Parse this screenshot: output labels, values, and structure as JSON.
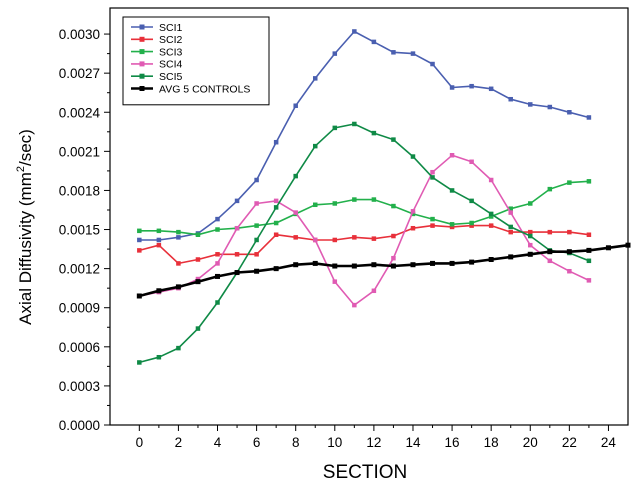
{
  "chart_data": {
    "type": "line",
    "xlabel": "SECTION",
    "ylabel_main": "Axial Diffusivity (mm",
    "ylabel_sup": "2",
    "ylabel_tail": "/sec)",
    "xlim": [
      -1.5,
      25
    ],
    "ylim": [
      0.0,
      0.0032
    ],
    "x_ticks": [
      0,
      2,
      4,
      6,
      8,
      10,
      12,
      14,
      16,
      18,
      20,
      22,
      24
    ],
    "x_tick_labels": [
      "0",
      "2",
      "4",
      "6",
      "8",
      "10",
      "12",
      "14",
      "16",
      "18",
      "20",
      "22",
      "24"
    ],
    "y_ticks": [
      0.0,
      0.0003,
      0.0006,
      0.0009,
      0.0012,
      0.0015,
      0.0018,
      0.0021,
      0.0024,
      0.0027,
      0.003
    ],
    "y_tick_labels": [
      "0.0000",
      "0.0003",
      "0.0006",
      "0.0009",
      "0.0012",
      "0.0015",
      "0.0018",
      "0.0021",
      "0.0024",
      "0.0027",
      "0.0030"
    ],
    "grid": false,
    "legend_position": "top-left",
    "series": [
      {
        "name": "SCI1",
        "color": "#4a5fb0",
        "marker": "square",
        "x": [
          0,
          1,
          2,
          3,
          4,
          5,
          6,
          7,
          8,
          9,
          10,
          11,
          12,
          13,
          14,
          15,
          16,
          17,
          18,
          19,
          20,
          21,
          22,
          23
        ],
        "y": [
          0.00142,
          0.00142,
          0.00144,
          0.00147,
          0.00158,
          0.00172,
          0.00188,
          0.00217,
          0.00245,
          0.00266,
          0.00285,
          0.00302,
          0.00294,
          0.00286,
          0.00285,
          0.00277,
          0.00259,
          0.0026,
          0.00258,
          0.0025,
          0.00246,
          0.00244,
          0.0024,
          0.00236
        ]
      },
      {
        "name": "SCI2",
        "color": "#e8303a",
        "marker": "square",
        "x": [
          0,
          1,
          2,
          3,
          4,
          5,
          6,
          7,
          8,
          9,
          10,
          11,
          12,
          13,
          14,
          15,
          16,
          17,
          18,
          19,
          20,
          21,
          22,
          23
        ],
        "y": [
          0.00134,
          0.00138,
          0.00124,
          0.00127,
          0.00131,
          0.00131,
          0.00131,
          0.00146,
          0.00144,
          0.00142,
          0.00142,
          0.00144,
          0.00143,
          0.00145,
          0.00151,
          0.00153,
          0.00152,
          0.00153,
          0.00153,
          0.00148,
          0.00148,
          0.00148,
          0.00148,
          0.00146
        ]
      },
      {
        "name": "SCI3",
        "color": "#22b04b",
        "marker": "square",
        "x": [
          0,
          1,
          2,
          3,
          4,
          5,
          6,
          7,
          8,
          9,
          10,
          11,
          12,
          13,
          14,
          15,
          16,
          17,
          18,
          19,
          20,
          21,
          22,
          23
        ],
        "y": [
          0.00149,
          0.00149,
          0.00148,
          0.00146,
          0.0015,
          0.00151,
          0.00153,
          0.00155,
          0.00162,
          0.00169,
          0.0017,
          0.00173,
          0.00173,
          0.00168,
          0.00162,
          0.00158,
          0.00154,
          0.00155,
          0.0016,
          0.00166,
          0.0017,
          0.00181,
          0.00186,
          0.00187
        ]
      },
      {
        "name": "SCI4",
        "color": "#e05bb3",
        "marker": "square",
        "x": [
          0,
          1,
          2,
          3,
          4,
          5,
          6,
          7,
          8,
          9,
          10,
          11,
          12,
          13,
          14,
          15,
          16,
          17,
          18,
          19,
          20,
          21,
          22,
          23
        ],
        "y": [
          0.00099,
          0.00102,
          0.00105,
          0.00112,
          0.00124,
          0.00151,
          0.0017,
          0.00172,
          0.00163,
          0.00142,
          0.0011,
          0.00092,
          0.00103,
          0.00128,
          0.00164,
          0.00194,
          0.00207,
          0.00202,
          0.00188,
          0.00163,
          0.00138,
          0.00126,
          0.00118,
          0.00111
        ]
      },
      {
        "name": "SCI5",
        "color": "#0f8a46",
        "marker": "square",
        "x": [
          0,
          1,
          2,
          3,
          4,
          5,
          6,
          7,
          8,
          9,
          10,
          11,
          12,
          13,
          14,
          15,
          16,
          17,
          18,
          19,
          20,
          21,
          22,
          23
        ],
        "y": [
          0.00048,
          0.00052,
          0.00059,
          0.00074,
          0.00094,
          0.00117,
          0.00142,
          0.00167,
          0.00191,
          0.00214,
          0.00228,
          0.00231,
          0.00224,
          0.00219,
          0.00206,
          0.0019,
          0.0018,
          0.00172,
          0.00162,
          0.00152,
          0.00145,
          0.00134,
          0.00132,
          0.00126
        ]
      },
      {
        "name": "AVG 5 CONTROLS",
        "color": "#000000",
        "marker": "square",
        "thick": true,
        "x": [
          0,
          1,
          2,
          3,
          4,
          5,
          6,
          7,
          8,
          9,
          10,
          11,
          12,
          13,
          14,
          15,
          16,
          17,
          18,
          19,
          20,
          21,
          22,
          23,
          24,
          25
        ],
        "y": [
          0.00099,
          0.00103,
          0.00106,
          0.0011,
          0.00114,
          0.00117,
          0.00118,
          0.0012,
          0.00123,
          0.00124,
          0.00122,
          0.00122,
          0.00123,
          0.00122,
          0.00123,
          0.00124,
          0.00124,
          0.00125,
          0.00127,
          0.00129,
          0.00131,
          0.00133,
          0.00133,
          0.00134,
          0.00136,
          0.00138
        ]
      }
    ]
  }
}
